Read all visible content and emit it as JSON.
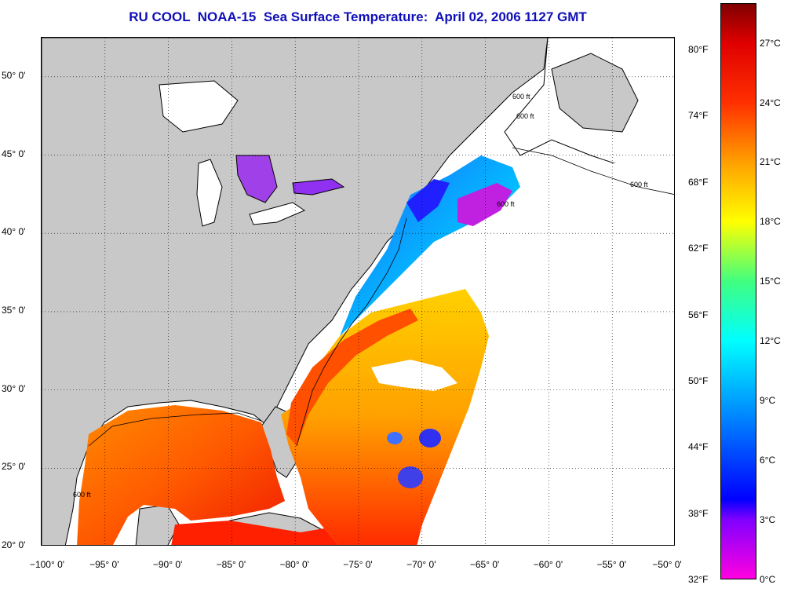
{
  "title": "RU COOL  NOAA-15  Sea Surface Temperature:  April 02, 2006 1127 GMT",
  "map": {
    "lon_range": [
      -100,
      -50
    ],
    "lat_range": [
      20,
      52.5
    ],
    "grid": "dotted",
    "lat_ticks": [
      {
        "lat": 50,
        "label": "50° 0'"
      },
      {
        "lat": 45,
        "label": "45° 0'"
      },
      {
        "lat": 40,
        "label": "40° 0'"
      },
      {
        "lat": 35,
        "label": "35° 0'"
      },
      {
        "lat": 30,
        "label": "30° 0'"
      },
      {
        "lat": 25,
        "label": "25° 0'"
      },
      {
        "lat": 20,
        "label": "20° 0'"
      }
    ],
    "lon_ticks": [
      {
        "lon": -100,
        "label": "−100° 0'"
      },
      {
        "lon": -95,
        "label": "−95° 0'"
      },
      {
        "lon": -90,
        "label": "−90° 0'"
      },
      {
        "lon": -85,
        "label": "−85° 0'"
      },
      {
        "lon": -80,
        "label": "−80° 0'"
      },
      {
        "lon": -75,
        "label": "−75° 0'"
      },
      {
        "lon": -70,
        "label": "−70° 0'"
      },
      {
        "lon": -65,
        "label": "−65° 0'"
      },
      {
        "lon": -60,
        "label": "−60° 0'"
      },
      {
        "lon": -55,
        "label": "−55° 0'"
      },
      {
        "lon": -50,
        "label": "−50° 0'"
      }
    ],
    "isobath_labels": [
      "600 ft",
      "600 ft",
      "600 ft",
      "600 ft",
      "600 ft"
    ],
    "colors": {
      "land": "#c8c8c8",
      "no_data": "#ffffff",
      "coastline": "#000000"
    }
  },
  "colorbar": {
    "range_c": [
      0,
      29
    ],
    "fahrenheit_labels": [
      "80°F",
      "74°F",
      "68°F",
      "62°F",
      "56°F",
      "50°F",
      "44°F",
      "38°F",
      "32°F"
    ],
    "celsius_labels": [
      "27°C",
      "24°C",
      "21°C",
      "18°C",
      "15°C",
      "12°C",
      "9°C",
      "6°C",
      "3°C",
      "0°C"
    ],
    "stops": [
      {
        "c": 0,
        "color": "#ff00e0"
      },
      {
        "c": 3,
        "color": "#8000ff"
      },
      {
        "c": 4,
        "color": "#0000ff"
      },
      {
        "c": 9,
        "color": "#00a0ff"
      },
      {
        "c": 12,
        "color": "#00ffff"
      },
      {
        "c": 15,
        "color": "#40ff80"
      },
      {
        "c": 18,
        "color": "#ffff00"
      },
      {
        "c": 21,
        "color": "#ffa000"
      },
      {
        "c": 24,
        "color": "#ff3000"
      },
      {
        "c": 27,
        "color": "#e00000"
      },
      {
        "c": 29,
        "color": "#800000"
      }
    ]
  }
}
